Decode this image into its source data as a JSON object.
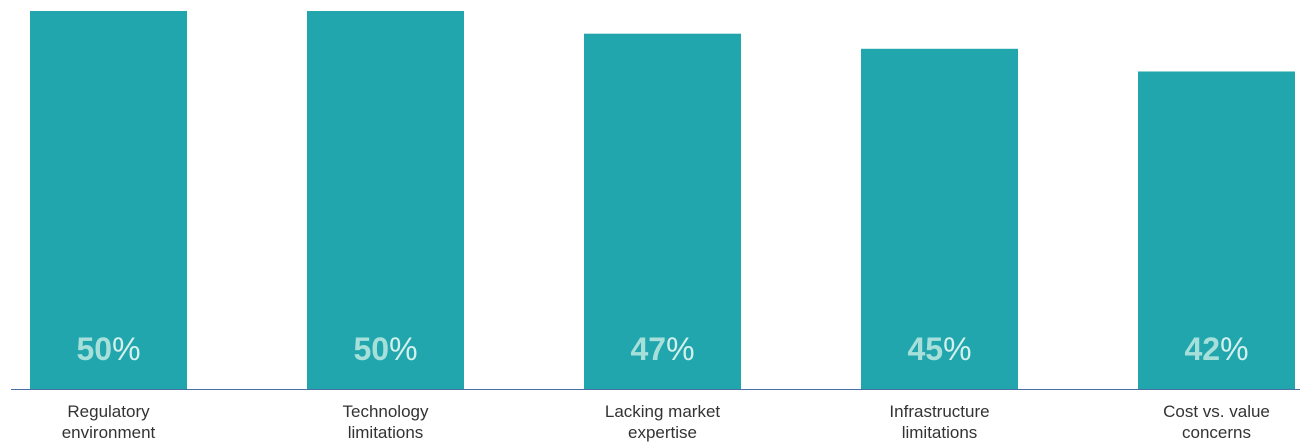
{
  "chart_data": {
    "type": "bar",
    "categories": [
      [
        "Regulatory",
        "environment"
      ],
      [
        "Technology",
        "limitations"
      ],
      [
        "Lacking market",
        "expertise"
      ],
      [
        "Infrastructure",
        "limitations"
      ],
      [
        "Cost vs. value",
        "concerns"
      ]
    ],
    "values": [
      50,
      50,
      47,
      45,
      42
    ],
    "value_labels": [
      "50",
      "50",
      "47",
      "45",
      "42"
    ],
    "value_suffix": "%",
    "title": "",
    "xlabel": "",
    "ylabel": "",
    "ylim": [
      0,
      50
    ],
    "grid": false,
    "colors": {
      "bar": "#21A6AD",
      "value_number": "#A7E0DA",
      "value_percent": "#D3F0EC",
      "axis": "#4A6FA5",
      "label": "#333333"
    }
  }
}
